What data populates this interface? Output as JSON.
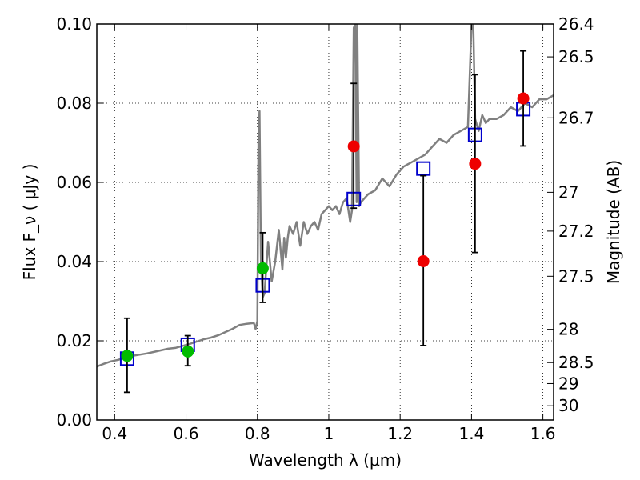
{
  "chart_data": {
    "type": "scatter",
    "xlabel": "Wavelength  λ (μm)",
    "ylabel_left": "Flux  F_ν  ( μJy )",
    "ylabel_right": "Magnitude (AB)",
    "xlim": [
      0.35,
      1.63
    ],
    "ylim": [
      0.0,
      0.1
    ],
    "x_ticks": [
      0.4,
      0.6,
      0.8,
      1.0,
      1.2,
      1.4,
      1.6
    ],
    "x_tick_labels": [
      "0.4",
      "0.6",
      "0.8",
      "1",
      "1.2",
      "1.4",
      "1.6"
    ],
    "y_ticks": [
      0.0,
      0.02,
      0.04,
      0.06,
      0.08,
      0.1
    ],
    "y_tick_labels": [
      "0.00",
      "0.02",
      "0.04",
      "0.06",
      "0.08",
      "0.10"
    ],
    "right_ticks": [
      {
        "flux": 0.1,
        "label": "26.4"
      },
      {
        "flux": 0.0917,
        "label": "26.5"
      },
      {
        "flux": 0.0763,
        "label": "26.7"
      },
      {
        "flux": 0.0575,
        "label": "27"
      },
      {
        "flux": 0.0477,
        "label": "27.2"
      },
      {
        "flux": 0.0363,
        "label": "27.5"
      },
      {
        "flux": 0.0229,
        "label": "28"
      },
      {
        "flux": 0.0145,
        "label": "28.5"
      },
      {
        "flux": 0.0092,
        "label": "29"
      },
      {
        "flux": 0.0036,
        "label": "30"
      }
    ],
    "grid": true,
    "model_spectrum": {
      "color": "#808080",
      "x": [
        0.35,
        0.37,
        0.39,
        0.41,
        0.43,
        0.45,
        0.47,
        0.49,
        0.51,
        0.53,
        0.55,
        0.57,
        0.59,
        0.61,
        0.63,
        0.65,
        0.67,
        0.69,
        0.71,
        0.73,
        0.75,
        0.77,
        0.79,
        0.795,
        0.8,
        0.803,
        0.806,
        0.81,
        0.815,
        0.82,
        0.83,
        0.84,
        0.85,
        0.86,
        0.87,
        0.875,
        0.88,
        0.885,
        0.89,
        0.9,
        0.91,
        0.92,
        0.93,
        0.94,
        0.95,
        0.96,
        0.97,
        0.98,
        0.99,
        1.0,
        1.01,
        1.02,
        1.03,
        1.04,
        1.05,
        1.06,
        1.065,
        1.07,
        1.074,
        1.078,
        1.08,
        1.085,
        1.09,
        1.11,
        1.13,
        1.15,
        1.17,
        1.19,
        1.21,
        1.23,
        1.25,
        1.27,
        1.29,
        1.31,
        1.33,
        1.35,
        1.37,
        1.39,
        1.4,
        1.405,
        1.41,
        1.42,
        1.43,
        1.44,
        1.45,
        1.47,
        1.49,
        1.51,
        1.53,
        1.55,
        1.57,
        1.59,
        1.61,
        1.63
      ],
      "y": [
        0.0135,
        0.0142,
        0.0148,
        0.0152,
        0.0158,
        0.0162,
        0.0165,
        0.0168,
        0.0172,
        0.0176,
        0.018,
        0.0182,
        0.0187,
        0.0192,
        0.0198,
        0.0204,
        0.0208,
        0.0214,
        0.0222,
        0.023,
        0.024,
        0.0243,
        0.0245,
        0.023,
        0.025,
        0.07,
        0.078,
        0.04,
        0.031,
        0.032,
        0.045,
        0.035,
        0.04,
        0.048,
        0.038,
        0.046,
        0.041,
        0.046,
        0.049,
        0.047,
        0.05,
        0.044,
        0.05,
        0.047,
        0.049,
        0.05,
        0.048,
        0.052,
        0.053,
        0.054,
        0.053,
        0.054,
        0.052,
        0.055,
        0.056,
        0.05,
        0.053,
        0.099,
        0.1,
        0.055,
        0.1,
        0.054,
        0.055,
        0.057,
        0.058,
        0.061,
        0.059,
        0.062,
        0.064,
        0.065,
        0.066,
        0.067,
        0.069,
        0.071,
        0.07,
        0.072,
        0.073,
        0.074,
        0.1,
        0.1,
        0.076,
        0.073,
        0.077,
        0.075,
        0.076,
        0.076,
        0.077,
        0.079,
        0.078,
        0.08,
        0.079,
        0.081,
        0.081,
        0.082
      ]
    },
    "series": [
      {
        "name": "",
        "marker": "open-square",
        "color": "#0000cc",
        "points": [
          [
            0.435,
            0.0155
          ],
          [
            0.605,
            0.019
          ],
          [
            0.815,
            0.034
          ],
          [
            1.07,
            0.0558
          ],
          [
            1.265,
            0.0635
          ],
          [
            1.41,
            0.072
          ],
          [
            1.545,
            0.0785
          ]
        ]
      },
      {
        "name": "",
        "marker": "filled-circle",
        "color": "#00bb00",
        "points": [
          [
            0.435,
            0.0162,
            0.007,
            0.0257
          ],
          [
            0.605,
            0.0173,
            0.0137,
            0.0213
          ],
          [
            0.815,
            0.0383,
            0.0297,
            0.0473
          ]
        ]
      },
      {
        "name": "",
        "marker": "filled-circle",
        "color": "#ee0000",
        "points": [
          [
            1.07,
            0.0691,
            0.0535,
            0.085
          ],
          [
            1.265,
            0.0401,
            0.0188,
            0.0617
          ],
          [
            1.41,
            0.0647,
            0.0423,
            0.0872
          ],
          [
            1.545,
            0.0812,
            0.0692,
            0.0932
          ]
        ]
      }
    ]
  }
}
